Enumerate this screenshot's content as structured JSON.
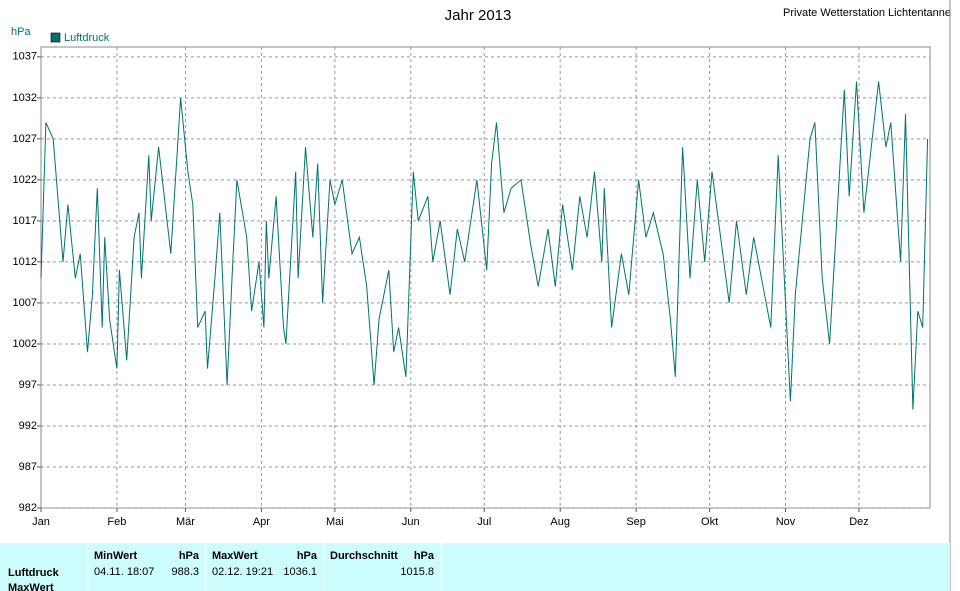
{
  "chart_data": {
    "type": "line",
    "title": "Jahr 2013",
    "source": "Private Wetterstation Lichtentanne",
    "y_label": "hPa",
    "x": [
      1,
      3,
      6,
      10,
      12,
      15,
      17,
      20,
      22,
      24,
      26,
      27,
      29,
      32,
      33,
      36,
      39,
      41,
      42,
      45,
      46,
      49,
      54,
      58,
      61,
      63,
      65,
      68,
      69,
      72,
      74,
      77,
      79,
      81,
      85,
      87,
      90,
      92,
      93,
      94,
      97,
      100,
      101,
      105,
      106,
      109,
      112,
      114,
      116,
      119,
      121,
      124,
      128,
      131,
      134,
      137,
      139,
      143,
      145,
      147,
      150,
      153,
      155,
      159,
      161,
      164,
      168,
      171,
      174,
      179,
      183,
      185,
      187,
      190,
      193,
      197,
      201,
      204,
      208,
      211,
      214,
      218,
      221,
      224,
      227,
      230,
      231,
      234,
      238,
      241,
      245,
      248,
      251,
      255,
      258,
      260,
      263,
      266,
      269,
      272,
      275,
      282,
      285,
      289,
      292,
      299,
      302,
      307,
      309,
      315,
      317,
      320,
      323,
      329,
      331,
      334,
      337,
      343,
      346,
      348,
      352,
      354,
      357,
      359,
      361,
      363
    ],
    "series": [
      {
        "name": "Luftdruck",
        "color": "#007272",
        "values": [
          1010,
          1029,
          1027,
          1012,
          1019,
          1010,
          1013,
          1001,
          1008,
          1021,
          1004,
          1015,
          1005,
          999,
          1011,
          1000,
          1015,
          1018,
          1010,
          1025,
          1017,
          1026,
          1013,
          1032,
          1023,
          1019,
          1004,
          1006,
          999,
          1010,
          1018,
          997,
          1010,
          1022,
          1015,
          1006,
          1012,
          1004,
          1017,
          1010,
          1020,
          1004,
          1002,
          1023,
          1010,
          1026,
          1015,
          1024,
          1007,
          1022,
          1019,
          1022,
          1013,
          1015,
          1009,
          997,
          1005,
          1011,
          1001,
          1004,
          998,
          1023,
          1017,
          1020,
          1012,
          1017,
          1008,
          1016,
          1012,
          1022,
          1011,
          1024,
          1029,
          1018,
          1021,
          1022,
          1014,
          1009,
          1016,
          1009,
          1019,
          1011,
          1020,
          1015,
          1023,
          1012,
          1021,
          1004,
          1013,
          1008,
          1022,
          1015,
          1018,
          1013,
          1005,
          998,
          1026,
          1010,
          1022,
          1012,
          1023,
          1007,
          1017,
          1008,
          1015,
          1004,
          1025,
          995,
          1008,
          1027,
          1029,
          1010,
          1002,
          1033,
          1020,
          1034,
          1018,
          1034,
          1026,
          1029,
          1012,
          1030,
          994,
          1006,
          1004,
          1027
        ]
      }
    ],
    "xlim": [
      1,
      364
    ],
    "ylim": [
      982,
      1038.2
    ],
    "xticks": [
      {
        "value": 1,
        "label": "Jan"
      },
      {
        "value": 32,
        "label": "Feb"
      },
      {
        "value": 60,
        "label": "Mär"
      },
      {
        "value": 91,
        "label": "Apr"
      },
      {
        "value": 121,
        "label": "Mai"
      },
      {
        "value": 152,
        "label": "Jun"
      },
      {
        "value": 182,
        "label": "Jul"
      },
      {
        "value": 213,
        "label": "Aug"
      },
      {
        "value": 244,
        "label": "Sep"
      },
      {
        "value": 274,
        "label": "Okt"
      },
      {
        "value": 305,
        "label": "Nov"
      },
      {
        "value": 335,
        "label": "Dez"
      }
    ],
    "yticks": [
      982,
      987,
      992,
      997,
      1002,
      1007,
      1012,
      1017,
      1022,
      1027,
      1032,
      1037
    ],
    "grid": true
  },
  "summary": {
    "row_labels": [
      "Luftdruck",
      "MaxWert"
    ],
    "columns": [
      {
        "header": "MinWert",
        "unit": "hPa",
        "time": "04.11.  18:07",
        "value": 988.3
      },
      {
        "header": "MaxWert",
        "unit": "hPa",
        "time": "02.12.  19:21",
        "value": 1036.1
      },
      {
        "header": "Durchschnitt",
        "unit": "hPa",
        "value": 1015.8
      }
    ]
  }
}
